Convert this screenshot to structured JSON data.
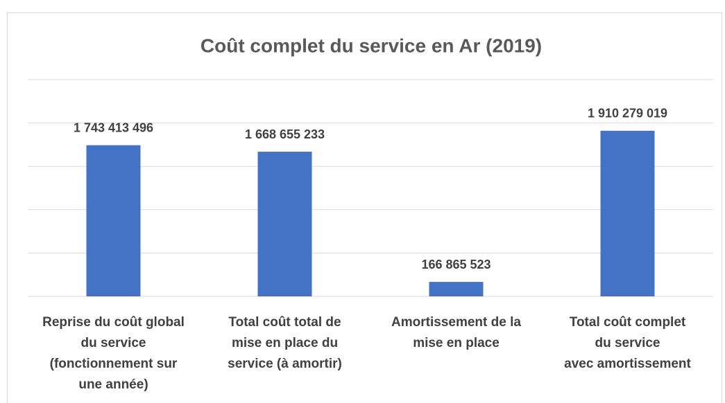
{
  "chart_data": {
    "type": "bar",
    "title": "Coût complet du service en Ar (2019)",
    "categories": [
      [
        "Reprise du coût global",
        "du service",
        "(fonctionnement sur",
        "une année)"
      ],
      [
        "Total coût total de",
        "mise en place du",
        "service (à amortir)"
      ],
      [
        "Amortissement de la",
        "mise en place"
      ],
      [
        "Total coût complet",
        "du service",
        "avec amortissement"
      ]
    ],
    "values": [
      1743413496,
      1668655233,
      166865523,
      1910279019
    ],
    "value_labels": [
      "1 743 413 496",
      "1 668 655 233",
      "166 865 523",
      "1 910 279 019"
    ],
    "color": "#4472c4",
    "ylim": [
      0,
      2500000000
    ],
    "yticks": [
      0,
      500000000,
      1000000000,
      1500000000,
      2000000000,
      2500000000
    ],
    "grid": true
  }
}
